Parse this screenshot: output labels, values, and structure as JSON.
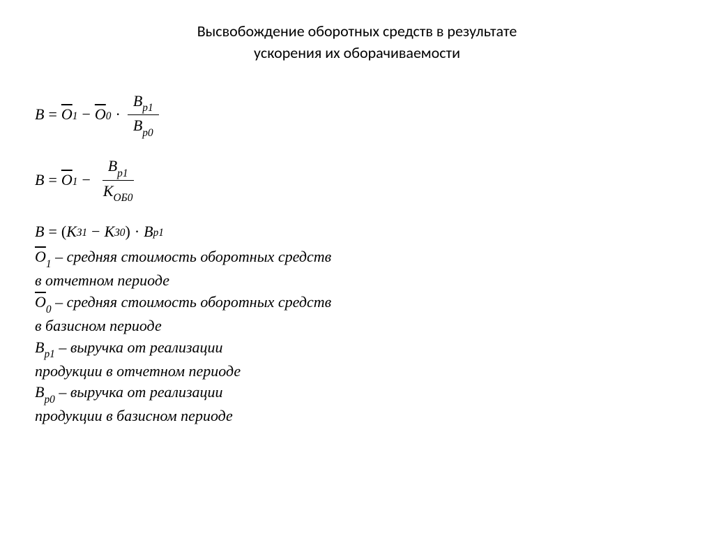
{
  "title_line1": "Высвобождение оборотных средств в результате",
  "title_line2": "ускорения их оборачиваемости",
  "formulas": {
    "f1": {
      "lhs": "В",
      "term1": "О",
      "term1_sub": "1",
      "term2": "О",
      "term2_sub": "0",
      "frac_num": "В",
      "frac_num_sub": "р1",
      "frac_den": "В",
      "frac_den_sub": "р0"
    },
    "f2": {
      "lhs": "В",
      "term1": "О",
      "term1_sub": "1",
      "frac_num": "В",
      "frac_num_sub": "р1",
      "frac_den": "К",
      "frac_den_sub": "ОБ0"
    },
    "f3": {
      "lhs": "В",
      "k1": "К",
      "k1_sub": "З1",
      "k0": "К",
      "k0_sub": "З0",
      "last": "В",
      "last_sub": "р1"
    }
  },
  "defs": {
    "o1_sym": "О",
    "o1_sub": "1",
    "o1_text1": " – средняя стоимость оборотных средств",
    "o1_text2": "в отчетном периоде",
    "o0_sym": "О",
    "o0_sub": "0",
    "o0_text1": " – средняя стоимость  оборотных средств",
    "o0_text2": "в базисном периоде",
    "bp1_sym": "В",
    "bp1_sub": "р1",
    "bp1_text1": " – выручка от  реализации",
    "bp1_text2": "продукции в отчетном периоде",
    "bp0_sym": "В",
    "bp0_sub": "р0",
    "bp0_text1": " – выручка от  реализации",
    "bp0_text2": "продукции в базисном периоде"
  }
}
